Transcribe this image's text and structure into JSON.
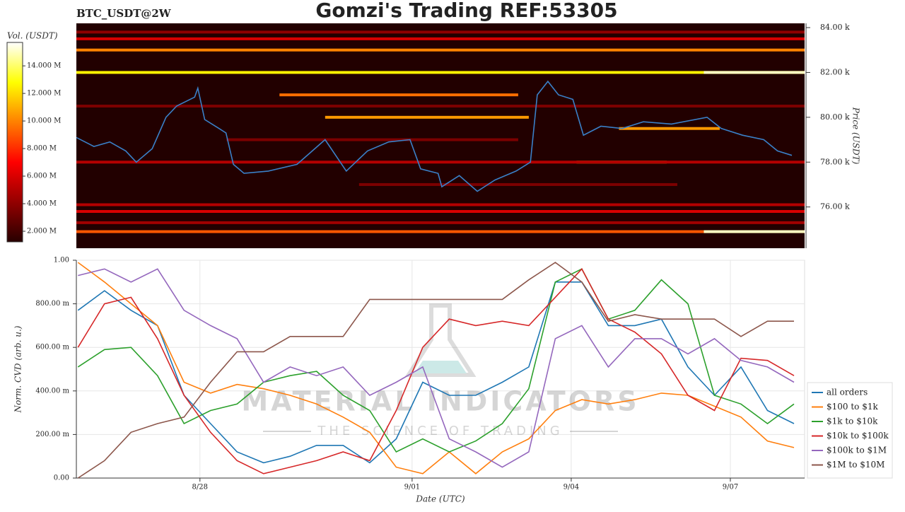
{
  "chart_data": [
    {
      "type": "heatmap",
      "title": "Gomzi's Trading REF:53305",
      "subtitle": "BTC_USDT@2W",
      "ylabel": "Price (USDT)",
      "colorbar_label": "Vol. (USDT)",
      "xlim": [
        -2.33,
        11.4
      ],
      "ylim": [
        74160,
        84190
      ],
      "yticks": [
        {
          "value": 76000,
          "label": "76.00 k"
        },
        {
          "value": 78000,
          "label": "78.00 k"
        },
        {
          "value": 80000,
          "label": "80.00 k"
        },
        {
          "value": 82000,
          "label": "82.00 k"
        },
        {
          "value": 84000,
          "label": "84.00 k"
        }
      ],
      "clim": [
        1230000,
        15700000
      ],
      "cticks": [
        {
          "value": 2000000,
          "label": "2.000 M"
        },
        {
          "value": 4000000,
          "label": "4.000 M"
        },
        {
          "value": 6000000,
          "label": "6.000 M"
        },
        {
          "value": 8000000,
          "label": "8.000 M"
        },
        {
          "value": 10000000,
          "label": "10.000 M"
        },
        {
          "value": 12000000,
          "label": "12.000 M"
        },
        {
          "value": 14000000,
          "label": "14.000 M"
        }
      ],
      "bands": {
        "price": [
          83500,
          83000,
          82000,
          82000,
          81000,
          80000,
          79500,
          78000,
          78000,
          76100,
          75800,
          74900,
          74900,
          80500,
          77000,
          79000,
          83800,
          75300
        ],
        "start": [
          -2.33,
          -2.33,
          -2.33,
          9.5,
          1.5,
          2.36,
          7.9,
          7.1,
          -2.33,
          -2.33,
          -2.33,
          -2.33,
          9.5,
          -2.33,
          3.0,
          0.5,
          -2.33,
          -2.33
        ],
        "end": [
          11.4,
          11.4,
          11.4,
          11.4,
          6.0,
          6.2,
          9.8,
          8.8,
          11.4,
          11.4,
          11.4,
          9.5,
          11.4,
          11.4,
          9.0,
          6.0,
          11.4,
          11.4
        ],
        "volume": [
          6000000,
          10000000,
          12500000,
          15000000,
          9500000,
          10500000,
          10500000,
          10500000,
          5000000,
          5000000,
          6000000,
          9000000,
          15000000,
          3500000,
          3500000,
          3500000,
          4000000,
          4500000
        ]
      },
      "line": {
        "color": "#3a80c8",
        "x": [
          -2.33,
          -2.0,
          -1.7,
          -1.4,
          -1.2,
          -0.9,
          -0.64,
          -0.44,
          -0.1,
          -0.04,
          0.09,
          0.36,
          0.49,
          0.63,
          0.83,
          1.29,
          1.83,
          2.36,
          2.76,
          3.16,
          3.56,
          3.96,
          4.16,
          4.49,
          4.56,
          4.89,
          5.23,
          5.56,
          5.96,
          6.23,
          6.36,
          6.56,
          6.76,
          7.03,
          7.23,
          7.56,
          7.96,
          8.36,
          8.89,
          9.56,
          9.83,
          10.23,
          10.63,
          10.89,
          11.16
        ],
        "values": [
          79100,
          78700,
          78900,
          78500,
          78000,
          78600,
          80000,
          80500,
          80900,
          81300,
          79900,
          79500,
          79300,
          77900,
          77500,
          77600,
          77900,
          79000,
          77600,
          78500,
          78900,
          79000,
          77700,
          77500,
          76900,
          77400,
          76700,
          77200,
          77600,
          78000,
          81000,
          81600,
          81000,
          80800,
          79200,
          79600,
          79500,
          79800,
          79700,
          80000,
          79500,
          79200,
          79000,
          78500,
          78300
        ]
      }
    },
    {
      "type": "line",
      "xlabel": "Date (UTC)",
      "ylabel": "Norm. CVD (arb. u.)",
      "xlim": [
        -2.33,
        11.4
      ],
      "ylim": [
        0,
        1
      ],
      "xticks": [
        {
          "value": 0,
          "label": "8/28"
        },
        {
          "value": 4,
          "label": "9/01"
        },
        {
          "value": 7,
          "label": "9/04"
        },
        {
          "value": 10,
          "label": "9/07"
        }
      ],
      "yticks": [
        {
          "value": 0,
          "label": "0.00"
        },
        {
          "value": 0.2,
          "label": "200.00 m"
        },
        {
          "value": 0.4,
          "label": "400.00 m"
        },
        {
          "value": 0.6,
          "label": "600.00 m"
        },
        {
          "value": 0.8,
          "label": "800.00 m"
        },
        {
          "value": 1,
          "label": "1.00"
        }
      ],
      "grid": true,
      "legend": "lower right",
      "watermark": {
        "title": "MATERIAL INDICATORS",
        "subtitle": "THE SCIENCE OF TRADING"
      },
      "x": [
        -2.3,
        -1.8,
        -1.3,
        -0.8,
        -0.3,
        0.2,
        0.7,
        1.2,
        1.7,
        2.2,
        2.7,
        3.2,
        3.7,
        4.2,
        4.7,
        5.2,
        5.7,
        6.2,
        6.7,
        7.2,
        7.7,
        8.2,
        8.7,
        9.2,
        9.7,
        10.2,
        10.7,
        11.2
      ],
      "series": [
        {
          "name": "all orders",
          "color": "#1f77b4",
          "values": [
            0.77,
            0.86,
            0.77,
            0.7,
            0.38,
            0.25,
            0.12,
            0.07,
            0.1,
            0.15,
            0.15,
            0.07,
            0.18,
            0.44,
            0.38,
            0.38,
            0.44,
            0.51,
            0.9,
            0.9,
            0.7,
            0.7,
            0.73,
            0.51,
            0.38,
            0.51,
            0.31,
            0.25
          ]
        },
        {
          "name": "$100 to $1k",
          "color": "#ff7f0e",
          "values": [
            0.99,
            0.9,
            0.8,
            0.7,
            0.44,
            0.39,
            0.43,
            0.41,
            0.38,
            0.34,
            0.28,
            0.21,
            0.05,
            0.02,
            0.12,
            0.02,
            0.12,
            0.18,
            0.31,
            0.36,
            0.34,
            0.36,
            0.39,
            0.38,
            0.33,
            0.28,
            0.17,
            0.14
          ]
        },
        {
          "name": "$1k to $10k",
          "color": "#2ca02c",
          "values": [
            0.51,
            0.59,
            0.6,
            0.47,
            0.25,
            0.31,
            0.34,
            0.44,
            0.47,
            0.49,
            0.38,
            0.31,
            0.12,
            0.18,
            0.12,
            0.17,
            0.25,
            0.41,
            0.9,
            0.96,
            0.73,
            0.77,
            0.91,
            0.8,
            0.38,
            0.34,
            0.25,
            0.34
          ]
        },
        {
          "name": "$10k to $100k",
          "color": "#d62728",
          "values": [
            0.6,
            0.8,
            0.83,
            0.64,
            0.38,
            0.21,
            0.08,
            0.02,
            0.05,
            0.08,
            0.12,
            0.08,
            0.31,
            0.6,
            0.73,
            0.7,
            0.72,
            0.7,
            0.83,
            0.96,
            0.73,
            0.67,
            0.57,
            0.38,
            0.31,
            0.55,
            0.54,
            0.47
          ]
        },
        {
          "name": "$100k to $1M",
          "color": "#9467bd",
          "values": [
            0.93,
            0.96,
            0.9,
            0.96,
            0.77,
            0.7,
            0.64,
            0.44,
            0.51,
            0.47,
            0.51,
            0.38,
            0.44,
            0.51,
            0.18,
            0.12,
            0.05,
            0.12,
            0.64,
            0.7,
            0.51,
            0.64,
            0.64,
            0.57,
            0.64,
            0.54,
            0.51,
            0.44
          ]
        },
        {
          "name": "$1M to $10M",
          "color": "#8c564b",
          "values": [
            0,
            0.08,
            0.21,
            0.25,
            0.28,
            0.44,
            0.58,
            0.58,
            0.65,
            0.65,
            0.65,
            0.82,
            0.82,
            0.82,
            0.82,
            0.82,
            0.82,
            0.91,
            0.99,
            0.9,
            0.72,
            0.75,
            0.73,
            0.73,
            0.73,
            0.65,
            0.72,
            0.72
          ]
        }
      ]
    }
  ]
}
